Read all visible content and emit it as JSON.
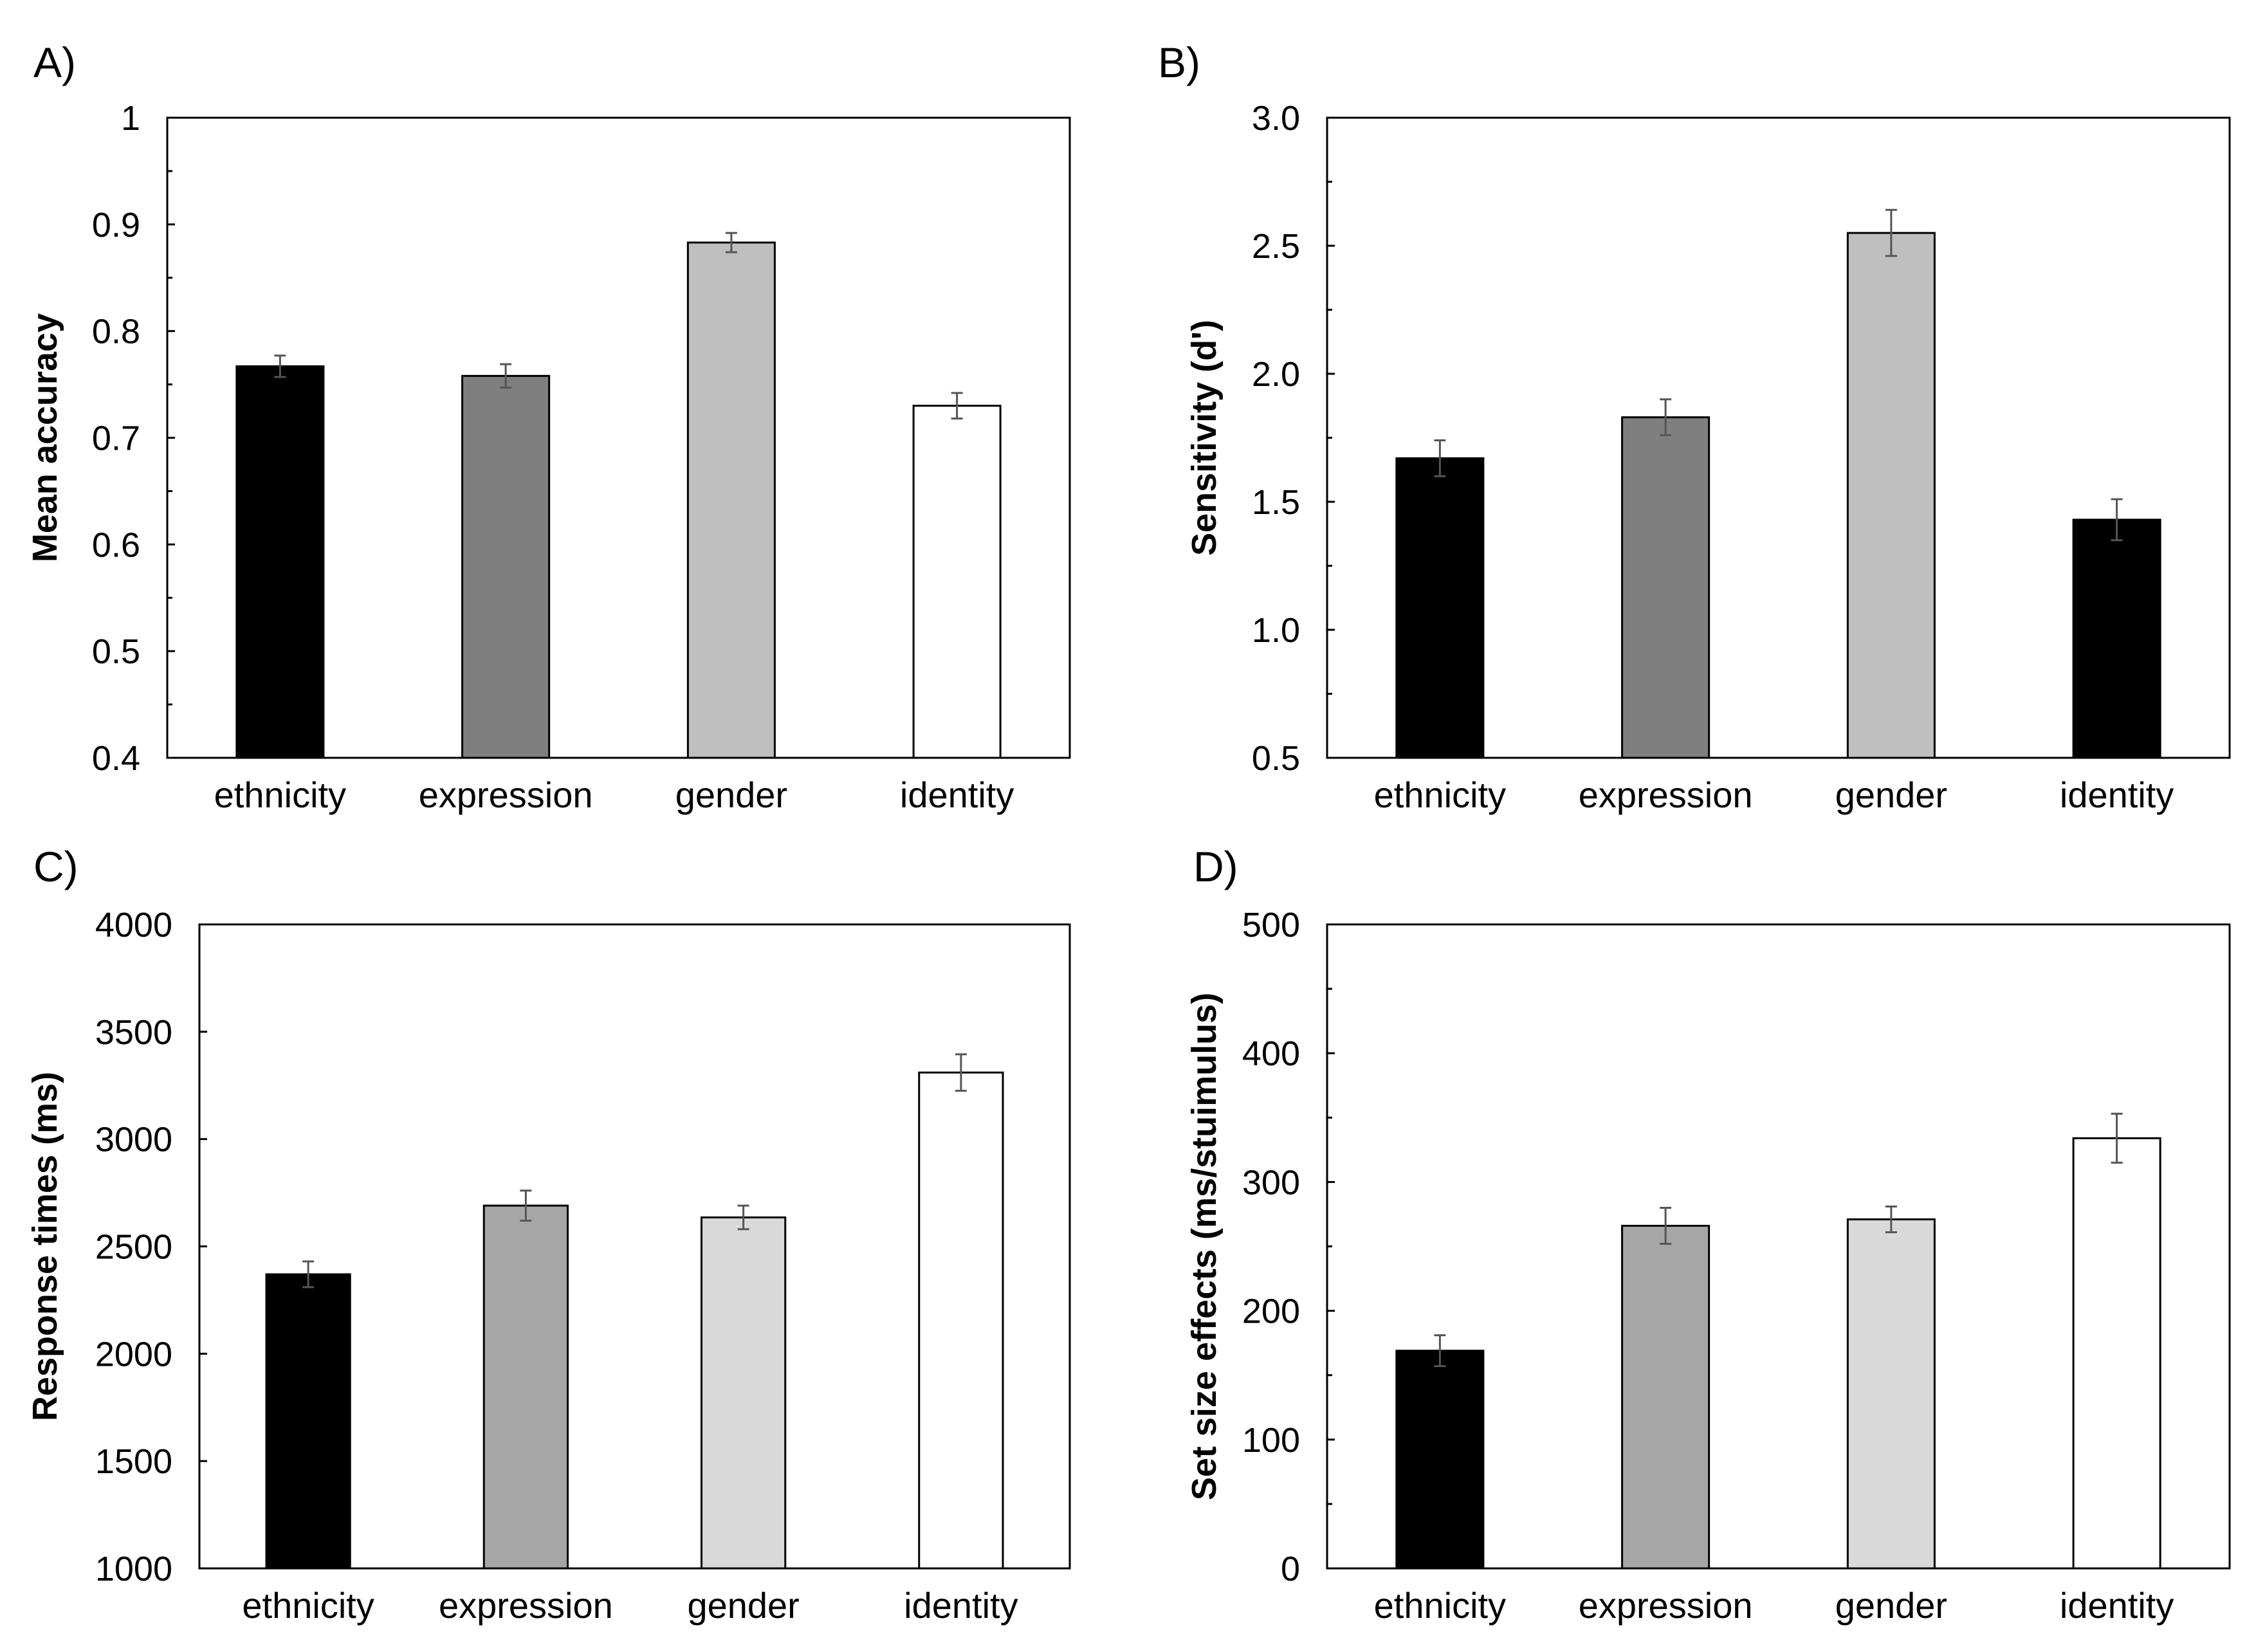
{
  "chart_data": [
    {
      "panel": "A)",
      "type": "bar",
      "categories": [
        "ethnicity",
        "expression",
        "gender",
        "identity"
      ],
      "values": [
        0.767,
        0.758,
        0.883,
        0.73
      ],
      "errors": [
        0.01,
        0.011,
        0.009,
        0.012
      ],
      "bar_colors": [
        "#000000",
        "#7f7f7f",
        "#bfbfbf",
        "#ffffff"
      ],
      "ylabel": "Mean accuracy",
      "ylim": [
        0.4,
        1.0
      ],
      "yticks": [
        0.4,
        0.5,
        0.6,
        0.7,
        0.8,
        0.9,
        1.0
      ],
      "ytick_labels": [
        "0.4",
        "0.5",
        "0.6",
        "0.7",
        "0.8",
        "0.9",
        "1"
      ],
      "minor_ticks": true,
      "grid": false
    },
    {
      "panel": "B)",
      "type": "bar",
      "categories": [
        "ethnicity",
        "expression",
        "gender",
        "identity"
      ],
      "values": [
        1.67,
        1.83,
        2.55,
        1.43
      ],
      "errors": [
        0.07,
        0.07,
        0.09,
        0.08
      ],
      "bar_colors": [
        "#000000",
        "#7f7f7f",
        "#bfbfbf",
        "#000000"
      ],
      "ylabel": "Sensitivity (d')",
      "ylim": [
        0.5,
        3.0
      ],
      "yticks": [
        0.5,
        1.0,
        1.5,
        2.0,
        2.5,
        3.0
      ],
      "ytick_labels": [
        "0.5",
        "1.0",
        "1.5",
        "2.0",
        "2.5",
        "3.0"
      ],
      "minor_ticks": true,
      "grid": false
    },
    {
      "panel": "C)",
      "type": "bar",
      "categories": [
        "ethnicity",
        "expression",
        "gender",
        "identity"
      ],
      "values": [
        2370,
        2690,
        2635,
        3310
      ],
      "errors": [
        60,
        70,
        55,
        85
      ],
      "bar_colors": [
        "#000000",
        "#a6a6a6",
        "#d9d9d9",
        "#ffffff"
      ],
      "ylabel": "Response times (ms)",
      "ylim": [
        1000,
        4000
      ],
      "yticks": [
        1000,
        1500,
        2000,
        2500,
        3000,
        3500,
        4000
      ],
      "ytick_labels": [
        "1000",
        "1500",
        "2000",
        "2500",
        "3000",
        "3500",
        "4000"
      ],
      "minor_ticks": false,
      "grid": false
    },
    {
      "panel": "D)",
      "type": "bar",
      "categories": [
        "ethnicity",
        "expression",
        "gender",
        "identity"
      ],
      "values": [
        169,
        266,
        271,
        334
      ],
      "errors": [
        12,
        14,
        10,
        19
      ],
      "bar_colors": [
        "#000000",
        "#a6a6a6",
        "#d9d9d9",
        "#ffffff"
      ],
      "ylabel": "Set size effects (ms/stuimulus)",
      "ylim": [
        0,
        500
      ],
      "yticks": [
        0,
        100,
        200,
        300,
        400,
        500
      ],
      "ytick_labels": [
        "0",
        "100",
        "200",
        "300",
        "400",
        "500"
      ],
      "minor_ticks": true,
      "grid": false
    }
  ]
}
